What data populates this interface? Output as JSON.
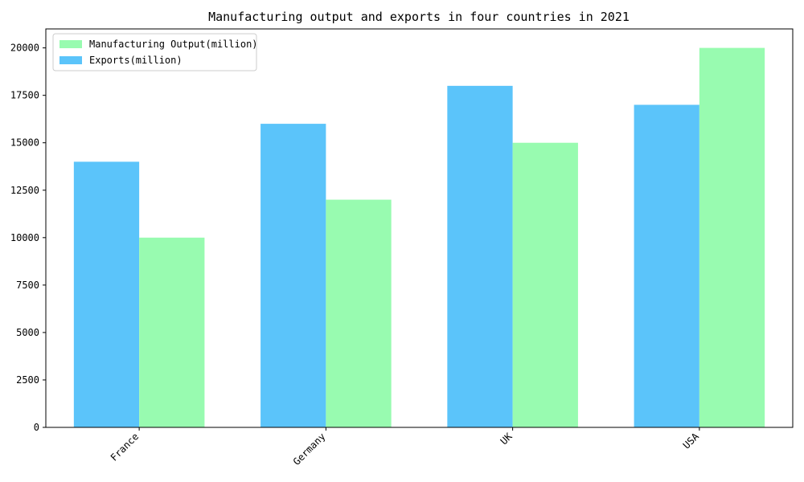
{
  "chart_data": {
    "type": "bar",
    "title": "Manufacturing output and exports in four countries in 2021",
    "xlabel": "",
    "ylabel": "",
    "categories": [
      "France",
      "Germany",
      "UK",
      "USA"
    ],
    "series": [
      {
        "name": "Exports(million)",
        "values": [
          14000,
          16000,
          18000,
          17000
        ],
        "color": "#5bc4fa"
      },
      {
        "name": "Manufacturing Output(million)",
        "values": [
          10000,
          12000,
          15000,
          20000
        ],
        "color": "#98fbb0"
      }
    ],
    "legend_order": [
      "Manufacturing Output(million)",
      "Exports(million)"
    ],
    "legend_position": "top-left",
    "ylim": [
      0,
      21000
    ],
    "yticks": [
      0,
      2500,
      5000,
      7500,
      10000,
      12500,
      15000,
      17500,
      20000
    ],
    "ytick_labels": [
      "0",
      "2500",
      "5000",
      "7500",
      "10000",
      "12500",
      "15000",
      "17500",
      "20000"
    ],
    "grid": false,
    "xtick_rotation": 45
  }
}
